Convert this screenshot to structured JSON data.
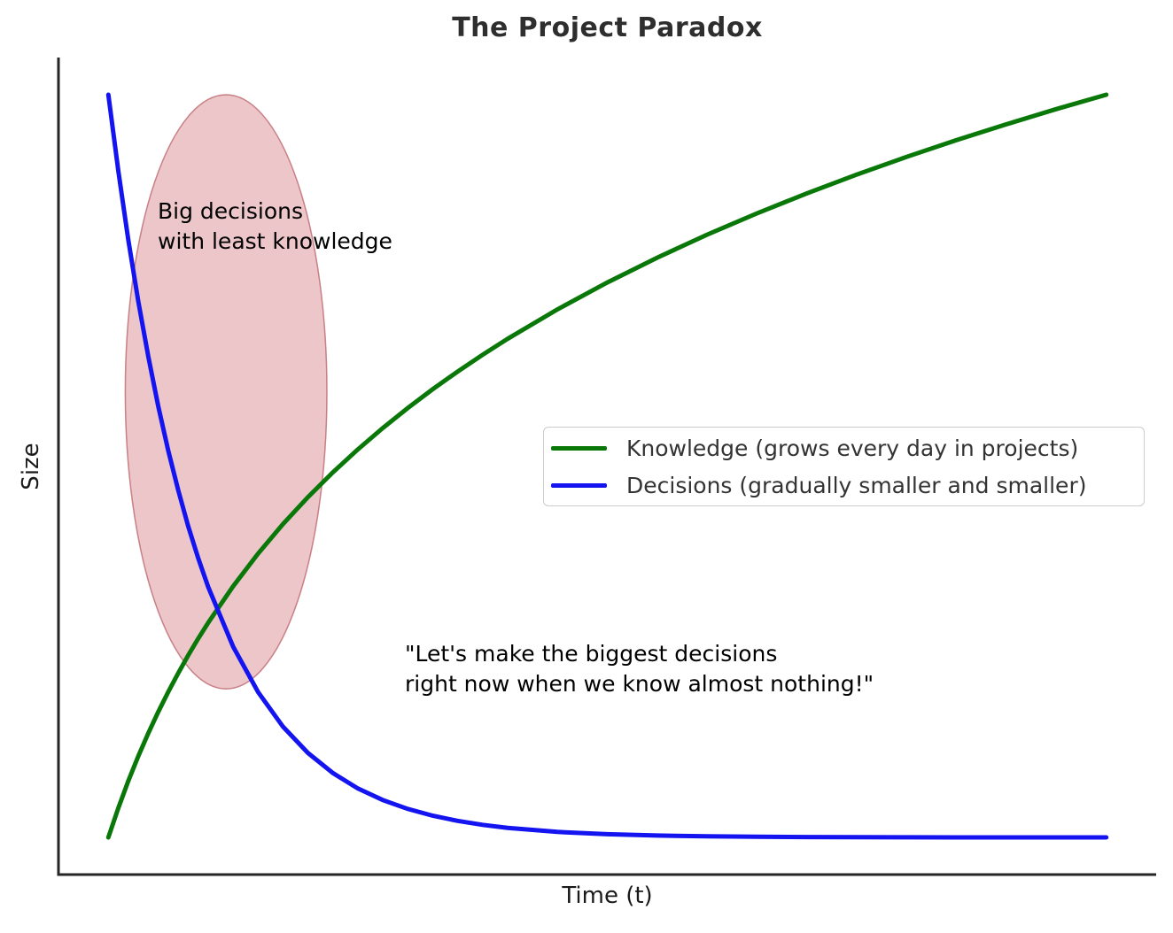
{
  "chart_data": {
    "type": "line",
    "title": "The Project Paradox",
    "xlabel": "Time (t)",
    "ylabel": "Size",
    "xlim": [
      0,
      10
    ],
    "ylim": [
      0,
      1
    ],
    "grid": false,
    "ticks_visible": false,
    "legend_position": "center right inside",
    "axis_color": "#262626",
    "x": [
      0,
      0.1,
      0.2,
      0.3,
      0.4,
      0.5,
      0.6,
      0.7,
      0.8,
      0.9,
      1,
      1.25,
      1.5,
      1.75,
      2,
      2.25,
      2.5,
      2.75,
      3,
      3.25,
      3.5,
      3.75,
      4,
      4.5,
      5,
      5.5,
      6,
      6.5,
      7,
      7.5,
      8,
      8.5,
      9,
      9.5,
      10
    ],
    "series": [
      {
        "name": "Knowledge (grows every day in projects)",
        "color": "#097809",
        "shape": "logarithmic growth",
        "values": [
          0,
          0.0397,
          0.076,
          0.1094,
          0.1403,
          0.1691,
          0.196,
          0.2213,
          0.2451,
          0.2677,
          0.2891,
          0.3382,
          0.3821,
          0.4219,
          0.4582,
          0.4916,
          0.5224,
          0.5512,
          0.5781,
          0.6034,
          0.6272,
          0.6498,
          0.6712,
          0.7109,
          0.7472,
          0.7806,
          0.8115,
          0.8403,
          0.8672,
          0.8925,
          0.9163,
          0.9389,
          0.9602,
          0.9806,
          1.0
        ]
      },
      {
        "name": "Decisions (gradually smaller and smaller)",
        "color": "#1414f0",
        "shape": "exponential decay",
        "values": [
          1.0,
          0.897,
          0.8046,
          0.7217,
          0.6474,
          0.5807,
          0.5209,
          0.4673,
          0.4191,
          0.376,
          0.3372,
          0.257,
          0.1958,
          0.1492,
          0.1137,
          0.0867,
          0.066,
          0.0503,
          0.0384,
          0.0292,
          0.0223,
          0.017,
          0.0129,
          0.0075,
          0.0044,
          0.0025,
          0.0015,
          0.0009,
          0.0005,
          0.0003,
          0.0002,
          0.0001,
          0.0001,
          0.0,
          0.0
        ]
      }
    ],
    "annotations": {
      "ellipse": {
        "cx": 1.18,
        "cy": 0.6,
        "rx": 1.01,
        "ry": 0.4,
        "fill": "rgba(207,112,120,0.40)",
        "stroke": "rgba(186,96,102,0.75)"
      },
      "big_decisions": {
        "line1": "Big decisions",
        "line2": "with least knowledge",
        "x": 0.494,
        "y": 0.863
      },
      "quote": {
        "line1": "\"Let's make the biggest decisions",
        "line2": "right now when we know almost nothing!\"",
        "x": 2.971,
        "y": 0.267
      }
    }
  }
}
